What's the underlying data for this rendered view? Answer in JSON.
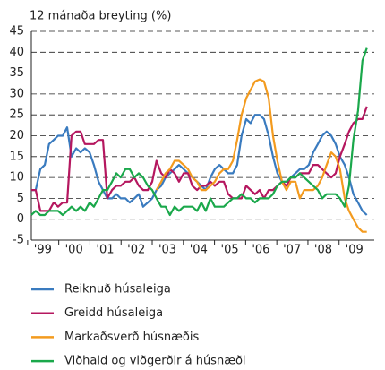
{
  "chart_data": {
    "type": "line",
    "title": "12 mánaða breyting (%)",
    "x": [
      1998.63,
      1998.77,
      1998.92,
      1999.06,
      1999.2,
      1999.35,
      1999.49,
      1999.64,
      1999.78,
      1999.92,
      2000.07,
      2000.21,
      2000.35,
      2000.5,
      2000.64,
      2000.79,
      2000.93,
      2001.07,
      2001.22,
      2001.36,
      2001.5,
      2001.65,
      2001.79,
      2001.94,
      2002.08,
      2002.22,
      2002.37,
      2002.51,
      2002.65,
      2002.8,
      2002.94,
      2003.08,
      2003.23,
      2003.37,
      2003.52,
      2003.66,
      2003.8,
      2003.95,
      2004.09,
      2004.23,
      2004.38,
      2004.52,
      2004.67,
      2004.81,
      2004.95,
      2005.1,
      2005.24,
      2005.38,
      2005.53,
      2005.67,
      2005.81,
      2005.96,
      2006.1,
      2006.25,
      2006.39,
      2006.53,
      2006.68,
      2006.82,
      2006.96,
      2007.11,
      2007.25,
      2007.39,
      2007.54,
      2007.68,
      2007.83,
      2007.97,
      2008.11,
      2008.26,
      2008.4,
      2008.54,
      2008.69,
      2008.83,
      2008.97,
      2009.12,
      2009.26,
      2009.4
    ],
    "series": [
      {
        "name": "Reiknuð húsaleiga",
        "color": "#3a7bbf",
        "values": [
          7,
          7,
          12,
          13,
          18,
          19,
          20,
          20,
          22,
          15,
          17,
          16,
          17,
          16,
          13,
          9,
          7,
          5,
          5,
          6,
          5,
          5,
          4,
          5,
          6,
          3,
          4,
          5,
          7,
          8,
          10,
          11,
          12,
          13,
          12,
          11,
          10,
          9,
          8,
          7,
          10,
          12,
          13,
          12,
          11,
          11,
          13,
          20,
          24,
          23,
          25,
          25,
          24,
          20,
          15,
          11,
          9,
          9,
          10,
          11,
          12,
          12,
          13,
          16,
          18,
          20,
          21,
          20,
          18,
          15,
          13,
          10,
          6,
          4,
          2,
          1
        ]
      },
      {
        "name": "Greidd húsaleiga",
        "color": "#b5175f",
        "values": [
          7,
          7,
          2,
          2,
          2,
          4,
          3,
          4,
          4,
          20,
          21,
          21,
          18,
          18,
          18,
          19,
          19,
          5,
          7,
          8,
          8,
          9,
          9,
          10,
          8,
          7,
          7,
          9,
          14,
          11,
          10,
          12,
          11,
          9,
          11,
          11,
          8,
          7,
          8,
          8,
          9,
          8,
          9,
          9,
          6,
          5,
          5,
          5,
          8,
          7,
          6,
          7,
          5,
          7,
          7,
          8,
          9,
          8,
          10,
          10,
          11,
          11,
          11,
          13,
          13,
          12,
          11,
          10,
          11,
          15,
          18,
          21,
          23,
          24,
          24,
          27
        ]
      },
      {
        "name": "Markaðsverð húsnæðis",
        "color": "#f39b1f",
        "values": [
          null,
          null,
          null,
          null,
          null,
          null,
          null,
          null,
          null,
          null,
          null,
          null,
          null,
          null,
          null,
          null,
          null,
          null,
          null,
          null,
          null,
          null,
          null,
          null,
          null,
          null,
          null,
          null,
          7,
          9,
          11,
          12,
          14,
          14,
          13,
          12,
          10,
          9,
          7,
          7,
          8,
          9,
          11,
          12,
          12,
          14,
          19,
          25,
          29,
          31,
          33,
          33.5,
          33,
          29,
          20,
          14,
          9,
          7,
          9,
          9,
          5,
          7,
          7,
          7,
          8,
          10,
          13,
          16,
          15,
          12,
          5,
          2,
          0,
          -2,
          -3,
          -3
        ]
      },
      {
        "name": "Viðhald og viðgerðir á húsnæði",
        "color": "#1aa84b",
        "values": [
          1,
          2,
          1,
          1,
          2,
          2,
          2,
          1,
          2,
          3,
          2,
          3,
          2,
          4,
          3,
          5,
          7,
          7,
          9,
          11,
          10,
          12,
          12,
          10,
          11,
          10,
          8,
          7,
          5,
          3,
          3,
          1,
          3,
          2,
          3,
          3,
          3,
          2,
          4,
          2,
          5,
          3,
          3,
          3,
          4,
          5,
          5,
          6,
          5,
          5,
          4,
          5,
          5,
          5,
          6,
          8,
          9,
          9,
          10,
          10,
          11,
          10,
          9,
          8,
          7,
          5,
          6,
          6,
          6,
          5,
          3,
          8,
          19,
          26,
          38,
          41
        ]
      }
    ],
    "xlim": [
      1998.63,
      2009.64
    ],
    "xticks": [
      {
        "value": 1999,
        "label": "'99"
      },
      {
        "value": 2000,
        "label": "'00"
      },
      {
        "value": 2001,
        "label": "'01"
      },
      {
        "value": 2002,
        "label": "'02"
      },
      {
        "value": 2003,
        "label": "'03"
      },
      {
        "value": 2004,
        "label": "'04"
      },
      {
        "value": 2005,
        "label": "'05"
      },
      {
        "value": 2006,
        "label": "'06"
      },
      {
        "value": 2007,
        "label": "'07"
      },
      {
        "value": 2008,
        "label": "'08"
      },
      {
        "value": 2009,
        "label": "'09"
      }
    ],
    "ylim": [
      -5,
      45
    ],
    "yticks": [
      -5,
      0,
      5,
      10,
      15,
      20,
      25,
      30,
      35,
      40,
      45
    ],
    "grid": true
  }
}
